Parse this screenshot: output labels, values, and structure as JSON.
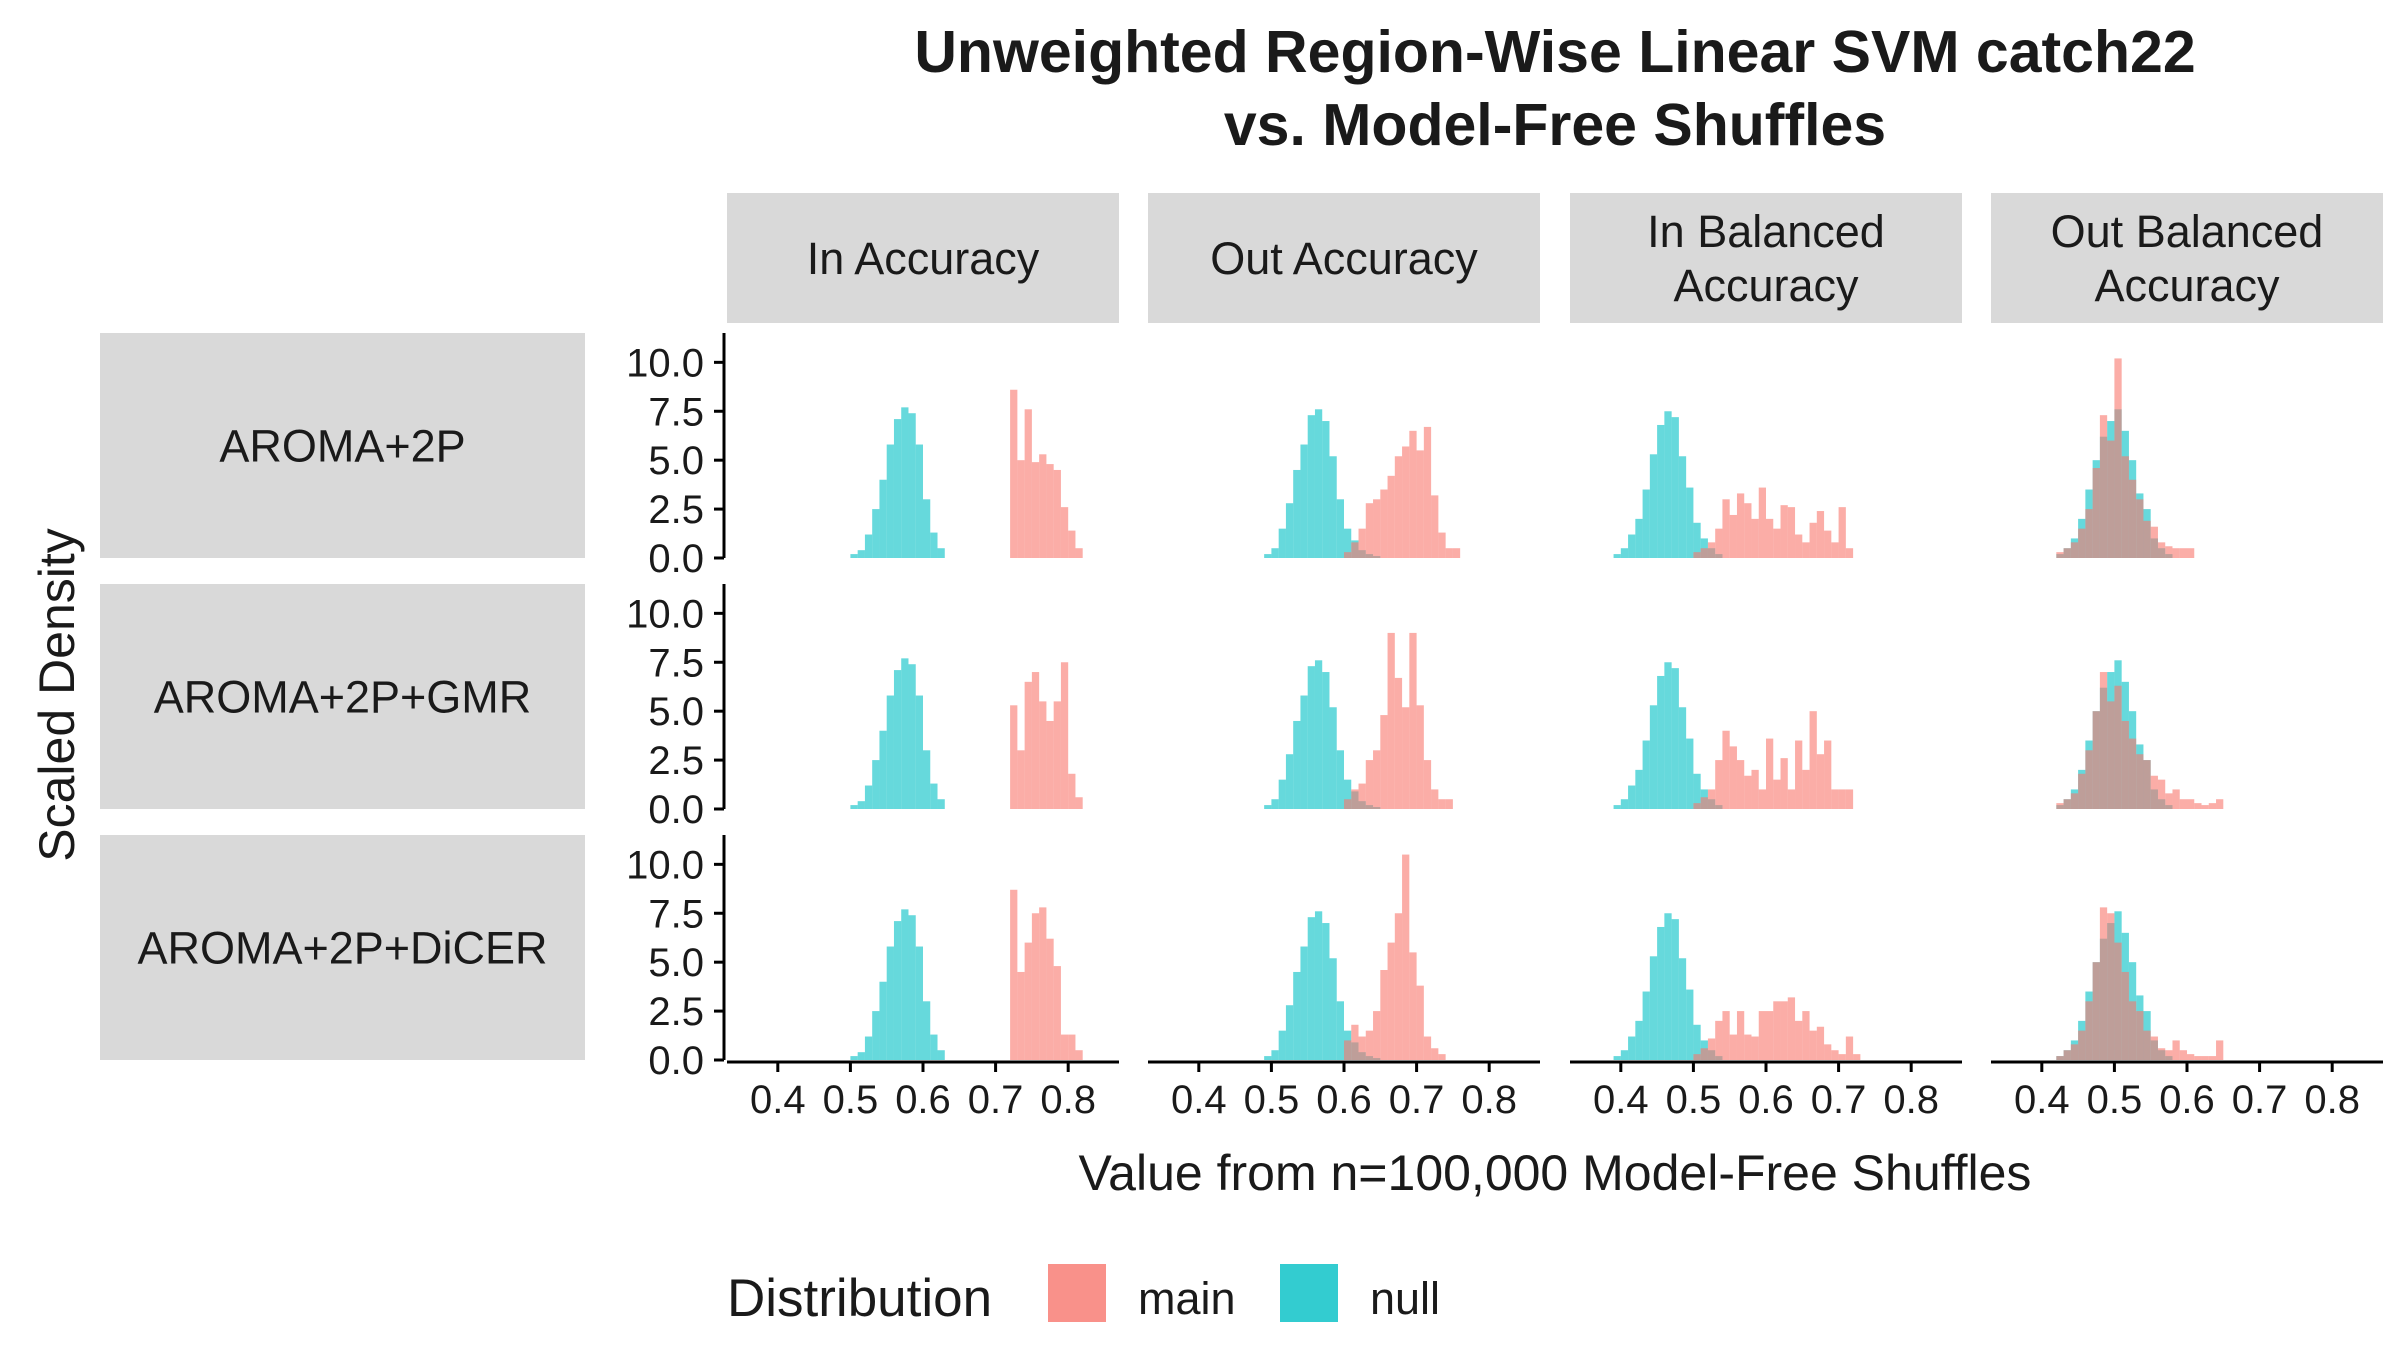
{
  "chart_data": {
    "type": "bar",
    "title": [
      "Unweighted Region-Wise Linear SVM catch22",
      "vs. Model-Free Shuffles"
    ],
    "xlabel": "Value from n=100,000 Model-Free Shuffles",
    "ylabel": "Scaled Density",
    "xlim": [
      0.33,
      0.87
    ],
    "ylim": [
      0,
      11.5
    ],
    "x_ticks": [
      0.4,
      0.5,
      0.6,
      0.7,
      0.8
    ],
    "x_tick_labels": [
      "0.4",
      "0.5",
      "0.6",
      "0.7",
      "0.8"
    ],
    "y_ticks": [
      0,
      2.5,
      5,
      7.5,
      10
    ],
    "y_tick_labels": [
      "0.0",
      "2.5",
      "5.0",
      "7.5",
      "10.0"
    ],
    "columns": [
      "In Accuracy",
      "Out Accuracy",
      "In Balanced\nAccuracy",
      "Out Balanced\nAccuracy"
    ],
    "rows": [
      "AROMA+2P",
      "AROMA+2P+GMR",
      "AROMA+2P+DiCER"
    ],
    "legend": {
      "title": "Distribution",
      "position": "bottom",
      "items": [
        {
          "label": "main",
          "color": "#F8766D"
        },
        {
          "label": "null",
          "color": "#00BFC4"
        }
      ]
    },
    "bin_width": 0.01,
    "series_style": {
      "main": {
        "color": "#F8766D",
        "opacity": 0.6
      },
      "null": {
        "color": "#00BFC4",
        "opacity": 0.6
      }
    },
    "panels": [
      {
        "row": "AROMA+2P",
        "column": "In Accuracy",
        "null": {
          "start": 0.5,
          "values": [
            0.2,
            0.4,
            1.2,
            2.5,
            4.0,
            5.8,
            7.1,
            7.7,
            7.4,
            5.8,
            3.0,
            1.3,
            0.5
          ]
        },
        "main": {
          "start": 0.72,
          "values": [
            8.6,
            5.0,
            7.6,
            4.9,
            5.3,
            4.8,
            4.5,
            2.6,
            1.4,
            0.5
          ]
        }
      },
      {
        "row": "AROMA+2P",
        "column": "Out Accuracy",
        "null": {
          "start": 0.49,
          "values": [
            0.2,
            0.5,
            1.5,
            2.8,
            4.5,
            5.8,
            7.3,
            7.6,
            7.0,
            5.2,
            3.0,
            1.5,
            0.9,
            0.4,
            0.2,
            0.1
          ]
        },
        "main": {
          "start": 0.6,
          "values": [
            0.3,
            0.8,
            1.5,
            2.8,
            3.0,
            3.5,
            4.2,
            5.2,
            5.7,
            6.5,
            5.5,
            6.7,
            3.2,
            1.3,
            0.5,
            0.5
          ]
        }
      },
      {
        "row": "AROMA+2P",
        "column": "In Balanced\nAccuracy",
        "null": {
          "start": 0.39,
          "values": [
            0.2,
            0.5,
            1.2,
            2.0,
            3.5,
            5.3,
            6.8,
            7.5,
            7.2,
            5.2,
            3.6,
            1.8,
            1.0,
            0.5,
            0.2
          ]
        },
        "main": {
          "start": 0.5,
          "values": [
            0.3,
            0.5,
            0.8,
            1.5,
            3.0,
            2.2,
            3.3,
            2.8,
            2.0,
            3.6,
            2.0,
            1.5,
            2.7,
            2.6,
            1.2,
            0.8,
            1.8,
            2.4,
            1.4,
            0.8,
            2.6,
            0.5
          ]
        }
      },
      {
        "row": "AROMA+2P",
        "column": "Out Balanced\nAccuracy",
        "null": {
          "start": 0.42,
          "values": [
            0.2,
            0.5,
            1.0,
            2.0,
            3.5,
            5.0,
            6.2,
            7.0,
            7.6,
            6.5,
            5.0,
            3.3,
            2.5,
            1.0,
            0.5,
            0.2
          ]
        },
        "main": {
          "start": 0.42,
          "values": [
            0.3,
            0.5,
            0.8,
            1.5,
            2.5,
            4.6,
            7.3,
            6.0,
            10.2,
            5.2,
            4.0,
            3.0,
            1.9,
            1.6,
            0.8,
            0.6,
            0.5,
            0.5,
            0.5
          ]
        }
      },
      {
        "row": "AROMA+2P+GMR",
        "column": "In Accuracy",
        "null": {
          "start": 0.5,
          "values": [
            0.2,
            0.4,
            1.2,
            2.5,
            4.0,
            5.8,
            7.1,
            7.7,
            7.4,
            5.8,
            3.0,
            1.3,
            0.5
          ]
        },
        "main": {
          "start": 0.72,
          "values": [
            5.3,
            3.0,
            6.5,
            7.0,
            5.5,
            4.5,
            5.5,
            7.5,
            1.8,
            0.6
          ]
        }
      },
      {
        "row": "AROMA+2P+GMR",
        "column": "Out Accuracy",
        "null": {
          "start": 0.49,
          "values": [
            0.2,
            0.5,
            1.5,
            2.8,
            4.5,
            5.8,
            7.3,
            7.6,
            7.0,
            5.2,
            3.0,
            1.5,
            0.9,
            0.4,
            0.2,
            0.1
          ]
        },
        "main": {
          "start": 0.6,
          "values": [
            0.5,
            1.0,
            1.3,
            2.5,
            3.0,
            4.8,
            9.0,
            6.7,
            5.2,
            9.0,
            5.3,
            2.5,
            1.0,
            0.5,
            0.5
          ]
        }
      },
      {
        "row": "AROMA+2P+GMR",
        "column": "In Balanced\nAccuracy",
        "null": {
          "start": 0.39,
          "values": [
            0.2,
            0.5,
            1.2,
            2.0,
            3.5,
            5.3,
            6.8,
            7.5,
            7.2,
            5.2,
            3.6,
            1.8,
            1.0,
            0.5,
            0.2
          ]
        },
        "main": {
          "start": 0.5,
          "values": [
            0.3,
            0.6,
            1.0,
            2.5,
            4.0,
            3.2,
            2.5,
            1.7,
            2.0,
            1.0,
            3.6,
            1.5,
            2.6,
            1.0,
            3.5,
            2.0,
            5.0,
            2.8,
            3.5,
            1.0,
            1.0,
            1.0
          ]
        }
      },
      {
        "row": "AROMA+2P+GMR",
        "column": "Out Balanced\nAccuracy",
        "null": {
          "start": 0.42,
          "values": [
            0.2,
            0.5,
            1.0,
            2.0,
            3.5,
            5.0,
            6.2,
            7.0,
            7.6,
            6.5,
            5.0,
            3.3,
            2.5,
            1.0,
            0.5,
            0.2
          ]
        },
        "main": {
          "start": 0.42,
          "values": [
            0.3,
            0.5,
            0.8,
            1.8,
            3.0,
            5.0,
            7.0,
            5.5,
            6.3,
            4.5,
            3.6,
            2.8,
            2.5,
            1.7,
            1.5,
            0.8,
            1.0,
            0.5,
            0.5,
            0.3,
            0.2,
            0.3,
            0.5
          ]
        }
      },
      {
        "row": "AROMA+2P+DiCER",
        "column": "In Accuracy",
        "null": {
          "start": 0.5,
          "values": [
            0.2,
            0.4,
            1.2,
            2.5,
            4.0,
            5.8,
            7.1,
            7.7,
            7.4,
            5.8,
            3.0,
            1.3,
            0.5
          ]
        },
        "main": {
          "start": 0.72,
          "values": [
            8.7,
            4.5,
            6.0,
            7.5,
            7.8,
            6.2,
            4.8,
            1.3,
            1.3,
            0.5
          ]
        }
      },
      {
        "row": "AROMA+2P+DiCER",
        "column": "Out Accuracy",
        "null": {
          "start": 0.49,
          "values": [
            0.2,
            0.5,
            1.5,
            2.8,
            4.5,
            5.8,
            7.3,
            7.6,
            7.0,
            5.2,
            3.0,
            1.5,
            0.9,
            0.4,
            0.2,
            0.1
          ]
        },
        "main": {
          "start": 0.6,
          "values": [
            1.0,
            1.8,
            1.2,
            1.5,
            2.5,
            4.6,
            6.0,
            7.5,
            10.5,
            5.5,
            3.8,
            1.2,
            0.6,
            0.3
          ]
        }
      },
      {
        "row": "AROMA+2P+DiCER",
        "column": "In Balanced\nAccuracy",
        "null": {
          "start": 0.39,
          "values": [
            0.2,
            0.5,
            1.2,
            2.0,
            3.5,
            5.3,
            6.8,
            7.5,
            7.2,
            5.2,
            3.6,
            1.8,
            1.0,
            0.5,
            0.2
          ]
        },
        "main": {
          "start": 0.5,
          "values": [
            0.3,
            0.6,
            1.1,
            2.0,
            2.5,
            1.3,
            2.5,
            1.3,
            1.2,
            2.5,
            2.5,
            3.0,
            3.0,
            3.2,
            2.0,
            2.5,
            1.5,
            1.7,
            0.8,
            0.5,
            0.3,
            1.2,
            0.3
          ]
        }
      },
      {
        "row": "AROMA+2P+DiCER",
        "column": "Out Balanced\nAccuracy",
        "null": {
          "start": 0.42,
          "values": [
            0.2,
            0.5,
            1.0,
            2.0,
            3.5,
            5.0,
            6.2,
            7.0,
            7.6,
            6.5,
            5.0,
            3.3,
            2.5,
            1.0,
            0.5,
            0.2
          ]
        },
        "main": {
          "start": 0.42,
          "values": [
            0.2,
            0.5,
            0.8,
            1.5,
            3.0,
            5.0,
            7.8,
            7.5,
            6.0,
            4.5,
            3.0,
            2.5,
            1.5,
            1.2,
            0.6,
            0.5,
            1.0,
            0.5,
            0.3,
            0.2,
            0.2,
            0.2,
            1.0
          ]
        }
      }
    ]
  }
}
